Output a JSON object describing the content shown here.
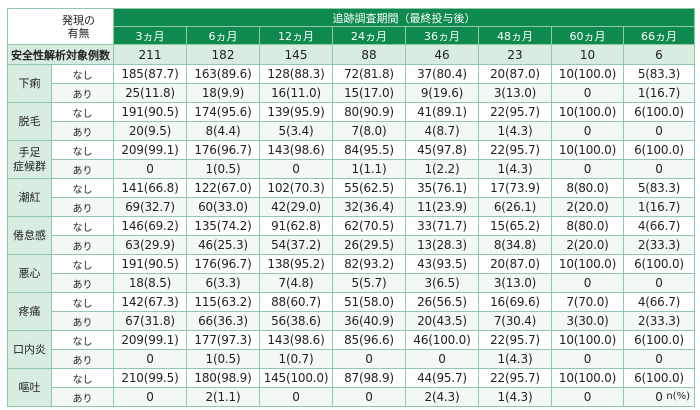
{
  "header": {
    "presence": "発現の\n有無",
    "period": "追跡調査期間（最終投与後）",
    "months": [
      "3ヵ月",
      "6ヵ月",
      "12ヵ月",
      "24ヵ月",
      "36ヵ月",
      "48ヵ月",
      "60ヵ月",
      "66ヵ月"
    ]
  },
  "sample": {
    "label": "安全性解析対象例数",
    "values": [
      "211",
      "182",
      "145",
      "88",
      "46",
      "23",
      "10",
      "6"
    ]
  },
  "presence_labels": {
    "no": "なし",
    "yes": "あり"
  },
  "events": [
    {
      "name": "下痢",
      "no": [
        "185(87.7)",
        "163(89.6)",
        "128(88.3)",
        "72(81.8)",
        "37(80.4)",
        "20(87.0)",
        "10(100.0)",
        "5(83.3)"
      ],
      "yes": [
        "25(11.8)",
        "18(9.9)",
        "16(11.0)",
        "15(17.0)",
        "9(19.6)",
        "3(13.0)",
        "0",
        "1(16.7)"
      ]
    },
    {
      "name": "脱毛",
      "no": [
        "191(90.5)",
        "174(95.6)",
        "139(95.9)",
        "80(90.9)",
        "41(89.1)",
        "22(95.7)",
        "10(100.0)",
        "6(100.0)"
      ],
      "yes": [
        "20(9.5)",
        "8(4.4)",
        "5(3.4)",
        "7(8.0)",
        "4(8.7)",
        "1(4.3)",
        "0",
        "0"
      ]
    },
    {
      "name": "手足\n症候群",
      "no": [
        "209(99.1)",
        "176(96.7)",
        "143(98.6)",
        "84(95.5)",
        "45(97.8)",
        "22(95.7)",
        "10(100.0)",
        "6(100.0)"
      ],
      "yes": [
        "0",
        "1(0.5)",
        "0",
        "1(1.1)",
        "1(2.2)",
        "1(4.3)",
        "0",
        "0"
      ]
    },
    {
      "name": "潮紅",
      "no": [
        "141(66.8)",
        "122(67.0)",
        "102(70.3)",
        "55(62.5)",
        "35(76.1)",
        "17(73.9)",
        "8(80.0)",
        "5(83.3)"
      ],
      "yes": [
        "69(32.7)",
        "60(33.0)",
        "42(29.0)",
        "32(36.4)",
        "11(23.9)",
        "6(26.1)",
        "2(20.0)",
        "1(16.7)"
      ]
    },
    {
      "name": "倦怠感",
      "no": [
        "146(69.2)",
        "135(74.2)",
        "91(62.8)",
        "62(70.5)",
        "33(71.7)",
        "15(65.2)",
        "8(80.0)",
        "4(66.7)"
      ],
      "yes": [
        "63(29.9)",
        "46(25.3)",
        "54(37.2)",
        "26(29.5)",
        "13(28.3)",
        "8(34.8)",
        "2(20.0)",
        "2(33.3)"
      ]
    },
    {
      "name": "悪心",
      "no": [
        "191(90.5)",
        "176(96.7)",
        "138(95.2)",
        "82(93.2)",
        "43(93.5)",
        "20(87.0)",
        "10(100.0)",
        "6(100.0)"
      ],
      "yes": [
        "18(8.5)",
        "6(3.3)",
        "7(4.8)",
        "5(5.7)",
        "3(6.5)",
        "3(13.0)",
        "0",
        "0"
      ]
    },
    {
      "name": "疼痛",
      "no": [
        "142(67.3)",
        "115(63.2)",
        "88(60.7)",
        "51(58.0)",
        "26(56.5)",
        "16(69.6)",
        "7(70.0)",
        "4(66.7)"
      ],
      "yes": [
        "67(31.8)",
        "66(36.3)",
        "56(38.6)",
        "36(40.9)",
        "20(43.5)",
        "7(30.4)",
        "3(30.0)",
        "2(33.3)"
      ]
    },
    {
      "name": "口内炎",
      "no": [
        "209(99.1)",
        "177(97.3)",
        "143(98.6)",
        "85(96.6)",
        "46(100.0)",
        "22(95.7)",
        "10(100.0)",
        "6(100.0)"
      ],
      "yes": [
        "0",
        "1(0.5)",
        "1(0.7)",
        "0",
        "0",
        "1(4.3)",
        "0",
        "0"
      ]
    },
    {
      "name": "嘔吐",
      "no": [
        "210(99.5)",
        "180(98.9)",
        "145(100.0)",
        "87(98.9)",
        "44(95.7)",
        "22(95.7)",
        "10(100.0)",
        "6(100.0)"
      ],
      "yes": [
        "0",
        "2(1.1)",
        "0",
        "0",
        "2(4.3)",
        "1(4.3)",
        "0",
        "0"
      ]
    }
  ],
  "unit_note": "n(%)"
}
